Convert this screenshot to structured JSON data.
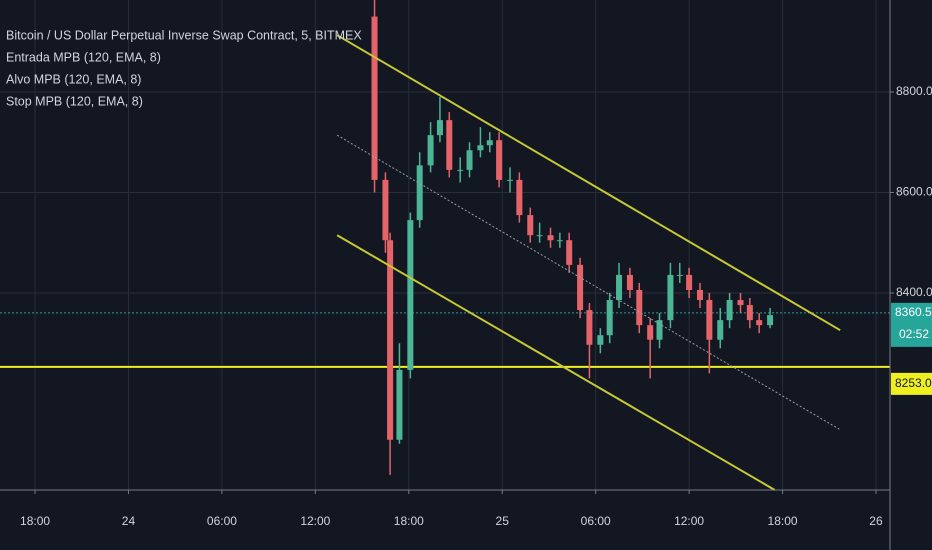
{
  "chart_data": {
    "type": "candlestick",
    "title": "Bitcoin / US Dollar Perpetual Inverse Swap Contract, 5, BITMEX",
    "indicators": [
      "Entrada MPB (120, EMA, 8)",
      "Alvo MPB (120, EMA, 8)",
      "Stop MPB (120, EMA, 8)"
    ],
    "x": [
      39.8,
      40.5,
      40.8,
      41.4,
      42.1,
      42.7,
      43.4,
      44.0,
      44.6,
      45.3,
      45.9,
      46.6,
      47.2,
      47.8,
      48.5,
      49.1,
      49.8,
      50.4,
      51.1,
      51.7,
      52.3,
      53.0,
      53.6,
      54.3,
      54.9,
      55.5,
      56.2,
      56.8,
      57.5,
      58.1,
      58.8,
      59.4,
      60.0,
      60.7,
      61.3,
      62.0,
      62.6,
      63.3,
      63.9,
      64.5,
      65.2
    ],
    "open": [
      8950,
      8625,
      8505,
      8108,
      8247,
      8545,
      8654,
      8714,
      8744,
      8645,
      8645,
      8684,
      8694,
      8704,
      8625,
      8625,
      8555,
      8515,
      8515,
      8505,
      8505,
      8456,
      8366,
      8297,
      8316,
      8386,
      8436,
      8406,
      8336,
      8307,
      8346,
      8436,
      8436,
      8406,
      8386,
      8307,
      8346,
      8386,
      8376,
      8346,
      8336
    ],
    "high": [
      8983,
      8640,
      8520,
      8300,
      8560,
      8680,
      8740,
      8790,
      8760,
      8670,
      8700,
      8730,
      8720,
      8720,
      8650,
      8640,
      8570,
      8540,
      8530,
      8520,
      8520,
      8470,
      8380,
      8330,
      8400,
      8460,
      8450,
      8420,
      8350,
      8360,
      8460,
      8460,
      8450,
      8420,
      8400,
      8370,
      8400,
      8400,
      8390,
      8360,
      8370
    ],
    "low": [
      8600,
      8480,
      8038,
      8100,
      8230,
      8530,
      8640,
      8700,
      8630,
      8620,
      8630,
      8670,
      8680,
      8610,
      8600,
      8540,
      8500,
      8500,
      8490,
      8490,
      8440,
      8350,
      8230,
      8280,
      8300,
      8370,
      8390,
      8320,
      8230,
      8290,
      8330,
      8420,
      8390,
      8370,
      8240,
      8290,
      8330,
      8360,
      8330,
      8320,
      8330
    ],
    "close": [
      8625,
      8505,
      8108,
      8247,
      8545,
      8654,
      8714,
      8744,
      8645,
      8645,
      8684,
      8694,
      8704,
      8625,
      8625,
      8555,
      8515,
      8515,
      8505,
      8505,
      8456,
      8366,
      8297,
      8316,
      8386,
      8436,
      8406,
      8336,
      8307,
      8346,
      8436,
      8436,
      8406,
      8386,
      8307,
      8346,
      8386,
      8376,
      8346,
      8336,
      8356
    ],
    "up_color": "#4cb596",
    "down_color": "#e5646a",
    "xlim": [
      15.75,
      72.9
    ],
    "ylim": [
      8008,
      8983
    ],
    "xticks": [
      {
        "value": 18,
        "label": "18:00"
      },
      {
        "value": 24,
        "label": "24"
      },
      {
        "value": 30,
        "label": "06:00"
      },
      {
        "value": 36,
        "label": "12:00"
      },
      {
        "value": 42,
        "label": "18:00"
      },
      {
        "value": 48,
        "label": "25"
      },
      {
        "value": 54,
        "label": "06:00"
      },
      {
        "value": 60,
        "label": "12:00"
      },
      {
        "value": 66,
        "label": "18:00"
      },
      {
        "value": 72,
        "label": "26"
      }
    ],
    "yticks": [
      {
        "value": 8800,
        "label": "8800.0"
      },
      {
        "value": 8600,
        "label": "8600.0"
      },
      {
        "value": 8400,
        "label": "8400.0"
      }
    ],
    "grid": true,
    "channels": [
      {
        "x": [
          37.4,
          69.7
        ],
        "y": [
          8913,
          8326
        ],
        "color": "#c8c832",
        "dashed": false
      },
      {
        "x": [
          37.4,
          65.5
        ],
        "y": [
          8515,
          8008
        ],
        "color": "#c8c832",
        "dashed": false
      },
      {
        "x": [
          37.4,
          69.7
        ],
        "y": [
          8714,
          8128
        ],
        "color": "#9aa0ab",
        "dashed": true
      }
    ],
    "hline": {
      "value": 8253,
      "label": "8253.0",
      "color": "#f0f020"
    },
    "last_price": {
      "value": 8360.5,
      "color": "#26a69a",
      "countdown": "02:52"
    }
  }
}
